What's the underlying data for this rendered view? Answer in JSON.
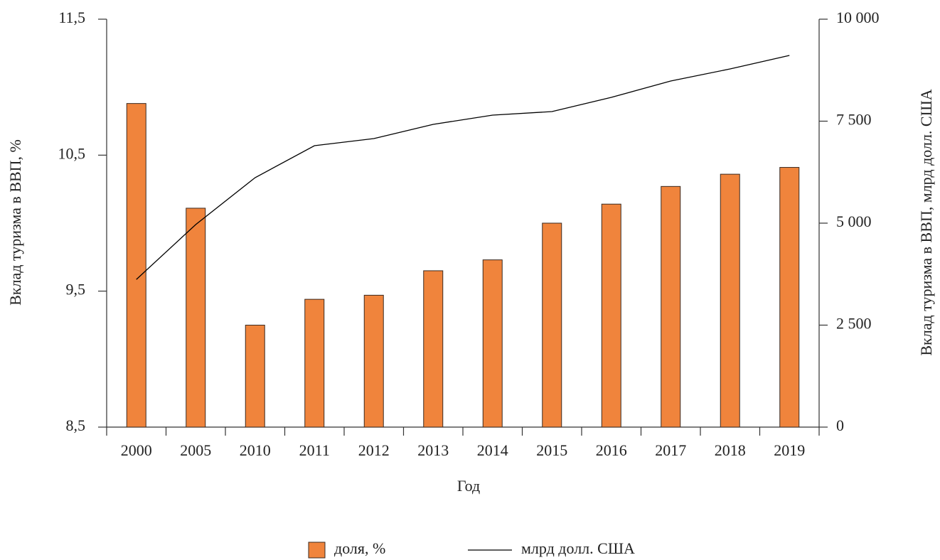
{
  "chart_data": {
    "type": "bar_line",
    "x_label": "Год",
    "y_label": "Вклад туризма в ВВП, %",
    "y2_label": "Вклад туризма в ВВП, млрд долл. США",
    "categories": [
      "2000",
      "2005",
      "2010",
      "2011",
      "2012",
      "2013",
      "2014",
      "2015",
      "2016",
      "2017",
      "2018",
      "2019"
    ],
    "series": [
      {
        "name": "доля, %",
        "type": "bar",
        "color": "#f0843c",
        "values": [
          10.88,
          10.11,
          9.25,
          9.44,
          9.47,
          9.65,
          9.73,
          10.0,
          10.14,
          10.27,
          10.36,
          10.41
        ]
      },
      {
        "name": "млрд долл. США",
        "type": "line",
        "color": "#000000",
        "axis": "y2",
        "values": [
          3620,
          4965,
          6115,
          6899,
          7073,
          7422,
          7648,
          7735,
          8084,
          8484,
          8780,
          9111
        ]
      }
    ],
    "ylim": [
      8.5,
      11.5
    ],
    "yticks": [
      {
        "value": 8.5,
        "label": "8,5"
      },
      {
        "value": 9.5,
        "label": "9,5"
      },
      {
        "value": 10.5,
        "label": "10,5"
      },
      {
        "value": 11.5,
        "label": "11,5"
      }
    ],
    "y2lim": [
      0,
      10000
    ],
    "y2ticks": [
      0,
      {
        "value": 2500,
        "label": "2 500"
      },
      {
        "value": 5000,
        "label": "5 000"
      },
      {
        "value": 7500,
        "label": "7 500"
      },
      {
        "value": 10000,
        "label": "10 000"
      }
    ],
    "legend": "bottom"
  }
}
